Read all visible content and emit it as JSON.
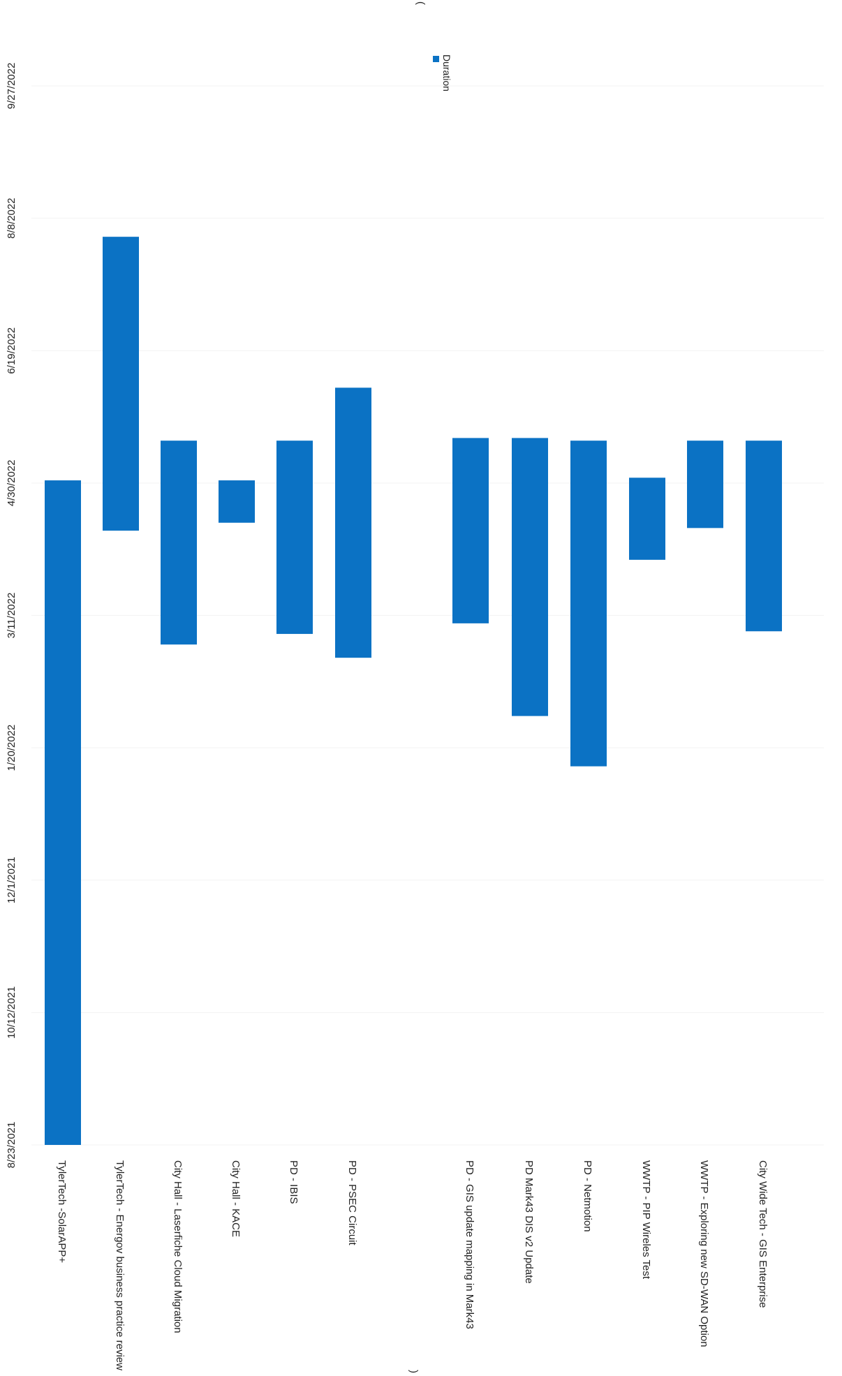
{
  "chart_data": {
    "type": "bar",
    "orientation": "horizontal (floating date-range bars, Gantt-style; page rotated 90° clockwise)",
    "title": "",
    "xlabel": "",
    "ylabel": "",
    "x_ticks": [
      "8/23/2021",
      "10/12/2021",
      "12/1/2021",
      "1/20/2022",
      "3/11/2022",
      "4/30/2022",
      "6/19/2022",
      "8/8/2022",
      "9/27/2022"
    ],
    "xlim": [
      "8/23/2021",
      "9/27/2022"
    ],
    "series": [
      {
        "name": "Duration",
        "color": "#0b72c4",
        "bars": [
          {
            "category": "TylerTech -SolarAPP+",
            "start": "8/23/2021",
            "end": "5/1/2022"
          },
          {
            "category": "TylerTech - Energov business practice review",
            "start": "4/12/2022",
            "end": "8/1/2022"
          },
          {
            "category": "City Hall - Laserfiche Cloud Migration",
            "start": "2/28/2022",
            "end": "5/16/2022"
          },
          {
            "category": "City Hall - KACE",
            "start": "4/15/2022",
            "end": "5/1/2022"
          },
          {
            "category": "PD - IBIS",
            "start": "3/4/2022",
            "end": "5/16/2022"
          },
          {
            "category": "PD - PSEC Circuit",
            "start": "2/23/2022",
            "end": "6/5/2022"
          },
          {
            "category": "PD - GIS update mapping in Mark43",
            "start": "3/8/2022",
            "end": "5/17/2022"
          },
          {
            "category": "PD Mark43 DIS v2 Update",
            "start": "2/1/2022",
            "end": "5/17/2022"
          },
          {
            "category": "PD - Netmotion",
            "start": "1/13/2022",
            "end": "5/16/2022"
          },
          {
            "category": "WWTP - PIP Wireles Test",
            "start": "4/1/2022",
            "end": "5/2/2022"
          },
          {
            "category": "WWTP - Exploring new SD-WAN Option",
            "start": "4/13/2022",
            "end": "5/16/2022"
          },
          {
            "category": "City Wide Tech - GIS Enterprise",
            "start": "3/5/2022",
            "end": "5/16/2022"
          }
        ]
      }
    ],
    "legend": {
      "position": "right",
      "entries": [
        "Duration"
      ]
    },
    "grid": false
  },
  "stray_marks": [
    "(",
    ")"
  ]
}
